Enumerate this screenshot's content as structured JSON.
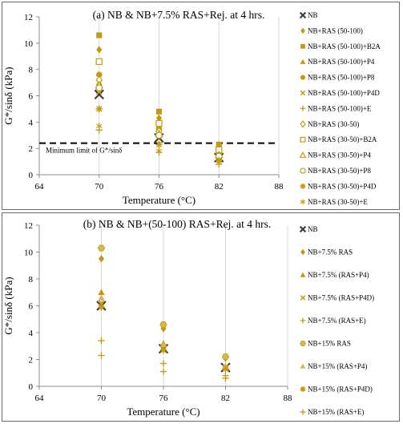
{
  "colors": {
    "gold": "#C29A12",
    "gold_light": "#D8B650",
    "nb": "#3a3a3a",
    "grid": "#d9d9d9",
    "axis": "#8c8c8c"
  },
  "chart_data": [
    {
      "type": "scatter",
      "title": "(a) NB & NB+7.5% RAS+Rej. at 4 hrs.",
      "xlabel": "Temperature (°C)",
      "ylabel": "G*/sinδ (kPa)",
      "xlim": [
        64,
        88
      ],
      "ylim": [
        0,
        12
      ],
      "xticks": [
        64,
        70,
        76,
        82,
        88
      ],
      "yticks": [
        0,
        2,
        4,
        6,
        8,
        10,
        12
      ],
      "grid": "vertical",
      "legend_position": "right",
      "reference_line": {
        "y": 2.4,
        "label": "Minimum limit of G*/sinδ"
      },
      "series": [
        {
          "name": "NB",
          "marker": "x-big",
          "x": [
            70,
            76,
            82
          ],
          "y": [
            6.1,
            2.8,
            1.3
          ]
        },
        {
          "name": "NB+RAS (50-100)",
          "marker": "diamond",
          "x": [
            70,
            76,
            82
          ],
          "y": [
            9.5,
            4.3,
            2.1
          ]
        },
        {
          "name": "NB+RAS (50-100)+B2A",
          "marker": "square",
          "x": [
            70,
            76,
            82
          ],
          "y": [
            10.6,
            4.8,
            2.3
          ]
        },
        {
          "name": "NB+RAS (50-100)+P4",
          "marker": "triangle",
          "x": [
            70,
            76,
            82
          ],
          "y": [
            7.0,
            3.2,
            1.5
          ]
        },
        {
          "name": "NB+RAS (50-100)+P8",
          "marker": "circle",
          "x": [
            70,
            76,
            82
          ],
          "y": [
            7.6,
            3.5,
            1.7
          ]
        },
        {
          "name": "NB+RAS (50-100)+P4D",
          "marker": "x",
          "x": [
            70,
            76,
            82
          ],
          "y": [
            6.3,
            2.9,
            1.4
          ]
        },
        {
          "name": "NB+RAS (50-100)+E",
          "marker": "plus",
          "x": [
            70,
            76,
            82
          ],
          "y": [
            3.4,
            1.7,
            0.8
          ]
        },
        {
          "name": "NB+RAS (30-50)",
          "marker": "diamond-open",
          "x": [
            70,
            76,
            82
          ],
          "y": [
            7.2,
            3.3,
            1.6
          ]
        },
        {
          "name": "NB+RAS (30-50)+B2A",
          "marker": "square-open",
          "x": [
            70,
            76,
            82
          ],
          "y": [
            8.6,
            3.9,
            1.9
          ]
        },
        {
          "name": "NB+RAS (30-50)+P4",
          "marker": "triangle-open",
          "x": [
            70,
            76,
            82
          ],
          "y": [
            6.8,
            3.1,
            1.5
          ]
        },
        {
          "name": "NB+RAS (30-50)+P8",
          "marker": "circle-open",
          "x": [
            70,
            76,
            82
          ],
          "y": [
            6.6,
            3.0,
            1.4
          ]
        },
        {
          "name": "NB+RAS (30-50)+P4D",
          "marker": "star",
          "x": [
            70,
            76,
            82
          ],
          "y": [
            5.0,
            2.3,
            1.1
          ]
        },
        {
          "name": "NB+RAS (30-50)+E",
          "marker": "asterisk",
          "x": [
            70,
            76,
            82
          ],
          "y": [
            3.7,
            1.8,
            0.9
          ]
        }
      ]
    },
    {
      "type": "scatter",
      "title": "(b) NB & NB+(50-100) RAS+Rej. at 4 hrs.",
      "xlabel": "Temperature (°C)",
      "ylabel": "G*/sinδ (kPa)",
      "xlim": [
        64,
        88
      ],
      "ylim": [
        0,
        12
      ],
      "xticks": [
        64,
        70,
        76,
        82,
        88
      ],
      "yticks": [
        0,
        2,
        4,
        6,
        8,
        10,
        12
      ],
      "grid": "vertical",
      "legend_position": "right",
      "series": [
        {
          "name": "NB",
          "marker": "x-big",
          "x": [
            70,
            76,
            82
          ],
          "y": [
            6.0,
            2.8,
            1.4
          ]
        },
        {
          "name": "NB+7.5% RAS",
          "marker": "diamond",
          "x": [
            70,
            76,
            82
          ],
          "y": [
            9.5,
            4.3,
            2.1
          ]
        },
        {
          "name": "NB+7.5% (RAS+P4)",
          "marker": "triangle",
          "x": [
            70,
            76,
            82
          ],
          "y": [
            7.0,
            3.2,
            1.5
          ]
        },
        {
          "name": "NB+7.5% (RAS+P4D)",
          "marker": "x",
          "x": [
            70,
            76,
            82
          ],
          "y": [
            6.2,
            2.9,
            1.4
          ]
        },
        {
          "name": "NB+7.5% (RAS+E)",
          "marker": "plus",
          "x": [
            70,
            76,
            82
          ],
          "y": [
            3.4,
            1.7,
            0.8
          ]
        },
        {
          "name": "NB+15% RAS",
          "marker": "hexagon",
          "x": [
            70,
            76,
            82
          ],
          "y": [
            10.3,
            4.6,
            2.2
          ]
        },
        {
          "name": "NB+15% (RAS+P4)",
          "marker": "triangle-light",
          "x": [
            70,
            76,
            82
          ],
          "y": [
            6.6,
            3.1,
            1.5
          ]
        },
        {
          "name": "NB+15% (RAS+P4D)",
          "marker": "star",
          "x": [
            70,
            76,
            82
          ],
          "y": [
            5.9,
            2.7,
            1.3
          ]
        },
        {
          "name": "NB+15% (RAS+E)",
          "marker": "plus",
          "x": [
            70,
            76,
            82
          ],
          "y": [
            2.3,
            1.1,
            0.6
          ]
        }
      ]
    }
  ]
}
